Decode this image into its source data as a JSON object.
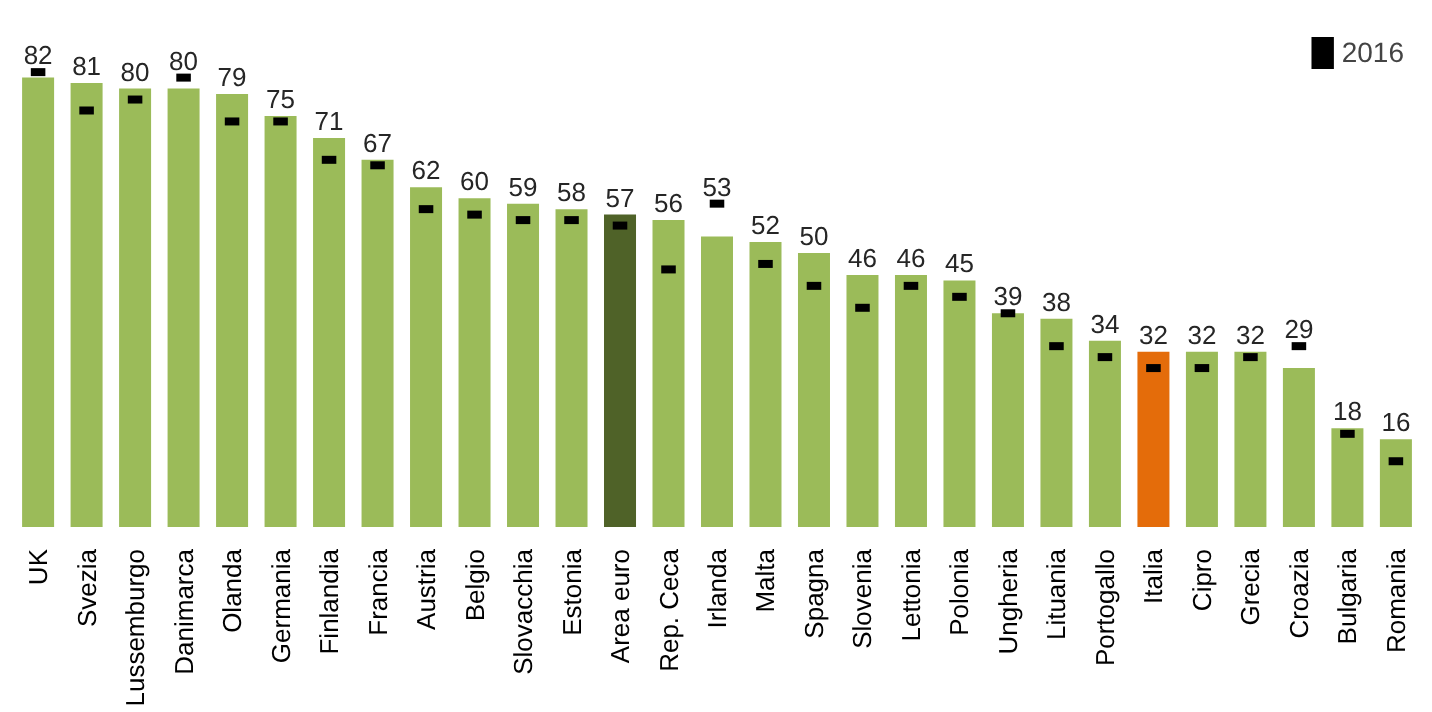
{
  "chart_data": {
    "type": "bar",
    "categories": [
      "UK",
      "Svezia",
      "Lussemburgo",
      "Danimarca",
      "Olanda",
      "Germania",
      "Finlandia",
      "Francia",
      "Austria",
      "Belgio",
      "Slovacchia",
      "Estonia",
      "Area euro",
      "Rep. Ceca",
      "Irlanda",
      "Malta",
      "Spagna",
      "Slovenia",
      "Lettonia",
      "Polonia",
      "Ungheria",
      "Lituania",
      "Portogallo",
      "Italia",
      "Cipro",
      "Grecia",
      "Croazia",
      "Bulgaria",
      "Romania"
    ],
    "series": [
      {
        "value_labels": [
          "82",
          "81",
          "80",
          "80",
          "79",
          "75",
          "71",
          "67",
          "62",
          "60",
          "59",
          "58",
          "57",
          "56",
          "53",
          "52",
          "50",
          "46",
          "46",
          "45",
          "39",
          "38",
          "34",
          "32",
          "32",
          "32",
          "29",
          "18",
          "16"
        ],
        "colors": [
          "#9bbb59",
          "#9bbb59",
          "#9bbb59",
          "#9bbb59",
          "#9bbb59",
          "#9bbb59",
          "#9bbb59",
          "#9bbb59",
          "#9bbb59",
          "#9bbb59",
          "#9bbb59",
          "#9bbb59",
          "#4f6228",
          "#9bbb59",
          "#9bbb59",
          "#9bbb59",
          "#9bbb59",
          "#9bbb59",
          "#9bbb59",
          "#9bbb59",
          "#9bbb59",
          "#9bbb59",
          "#9bbb59",
          "#e46c0a",
          "#9bbb59",
          "#9bbb59",
          "#9bbb59",
          "#9bbb59",
          "#9bbb59"
        ],
        "values": [
          82,
          81,
          80,
          80,
          79,
          75,
          71,
          67,
          62,
          60,
          59,
          58,
          57,
          56,
          53,
          52,
          50,
          46,
          46,
          45,
          39,
          38,
          34,
          32,
          32,
          32,
          29,
          18,
          16
        ]
      },
      {
        "type": "scatter",
        "name": "2016",
        "color": "#000000",
        "values": [
          83,
          76,
          78,
          82,
          74,
          74,
          67,
          66,
          58,
          57,
          56,
          56,
          55,
          47,
          59,
          48,
          44,
          40,
          44,
          42,
          39,
          33,
          31,
          29,
          29,
          31,
          33,
          17,
          12
        ]
      }
    ],
    "legend": "top right",
    "grid": false,
    "tick_labels": "x"
  }
}
